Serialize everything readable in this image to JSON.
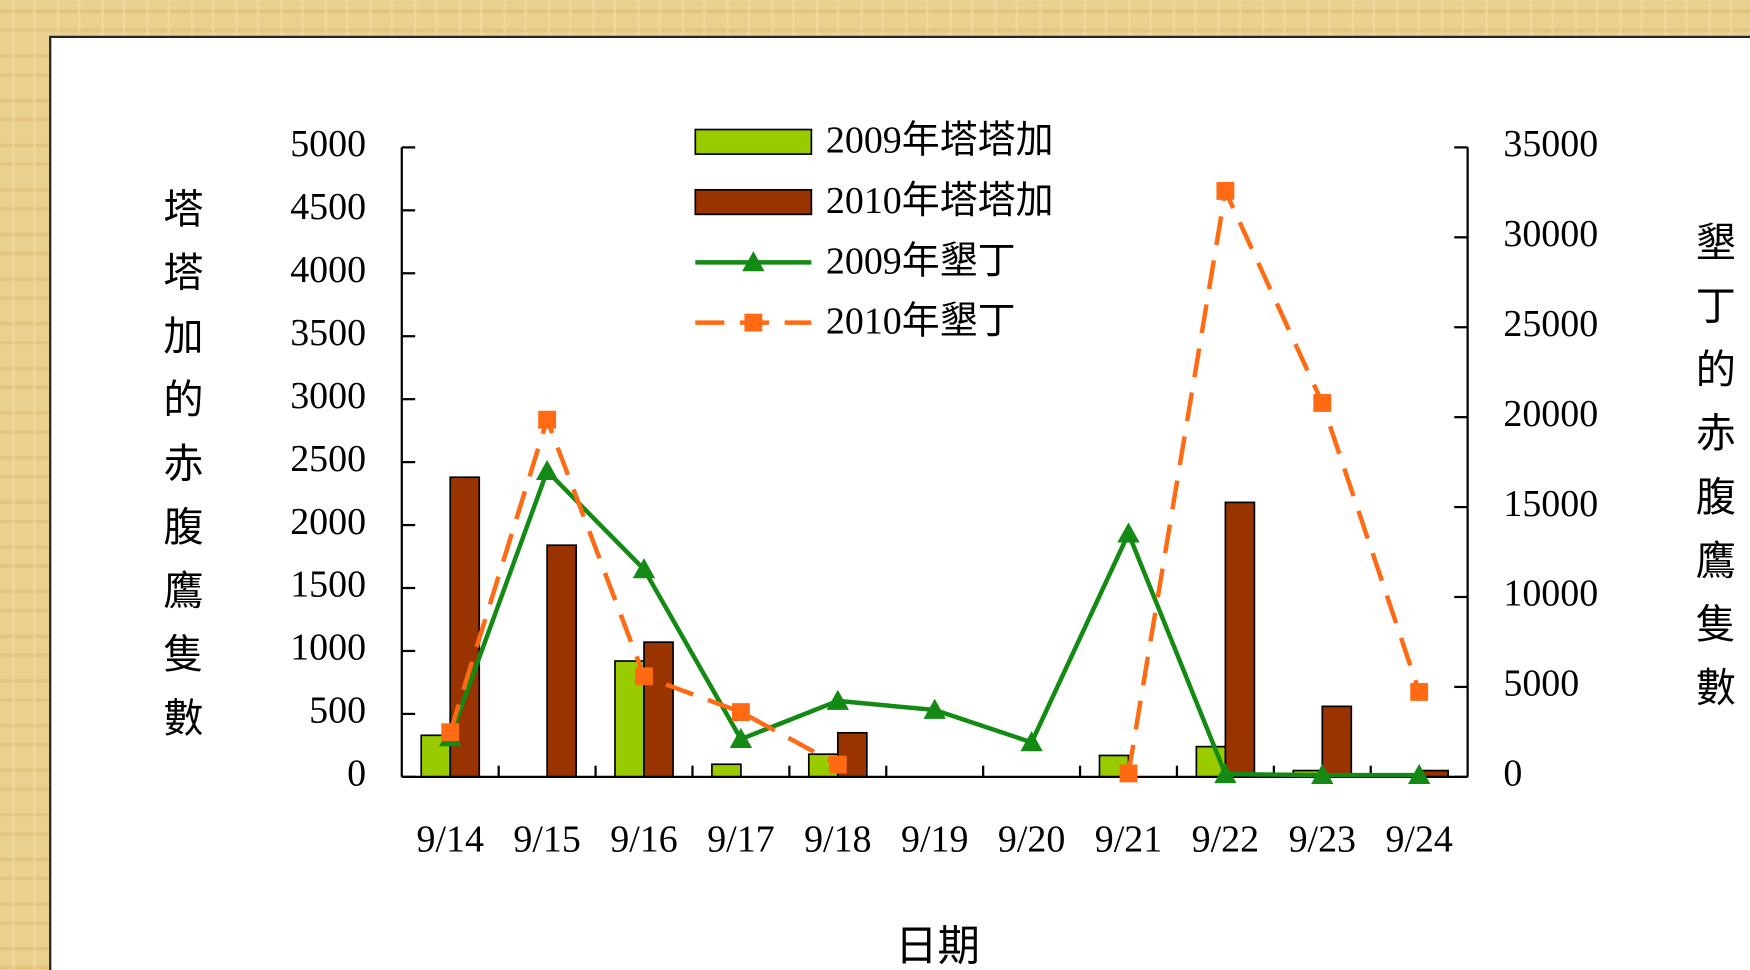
{
  "chart_data": {
    "type": "bar",
    "x_label": "日期",
    "y_label": "塔塔加的赤腹鷹隻數",
    "y2_label": "墾丁的赤腹鷹隻數",
    "categories": [
      "9/14",
      "9/15",
      "9/16",
      "9/17",
      "9/18",
      "9/19",
      "9/20",
      "9/21",
      "9/22",
      "9/23",
      "9/24"
    ],
    "ylim": [
      0,
      5000
    ],
    "yticks": [
      0,
      500,
      1000,
      1500,
      2000,
      2500,
      3000,
      3500,
      4000,
      4500,
      5000
    ],
    "y2lim": [
      0,
      35000
    ],
    "y2ticks": [
      0,
      5000,
      10000,
      15000,
      20000,
      25000,
      30000,
      35000
    ],
    "series": [
      {
        "name": "2009年塔塔加",
        "type": "bar",
        "color": "#99cc00",
        "values": [
          330,
          0,
          920,
          100,
          180,
          0,
          0,
          170,
          240,
          50,
          0
        ]
      },
      {
        "name": "2010年塔塔加",
        "type": "bar",
        "color": "#993300",
        "values": [
          2380,
          1840,
          1070,
          0,
          350,
          0,
          0,
          0,
          2180,
          560,
          50
        ]
      },
      {
        "name": "2009年墾丁",
        "type": "line",
        "axis": "y2",
        "color": "#138a13",
        "marker": "triangle",
        "dashed": false,
        "values": [
          2200,
          17000,
          11540,
          2100,
          4220,
          3720,
          1920,
          13530,
          150,
          100,
          100
        ]
      },
      {
        "name": "2010年墾丁",
        "type": "line",
        "axis": "y2",
        "color": "#ff6a13",
        "marker": "square",
        "dashed": true,
        "values": [
          2480,
          19860,
          5590,
          3600,
          680,
          null,
          null,
          190,
          32580,
          20790,
          4720
        ]
      }
    ]
  }
}
